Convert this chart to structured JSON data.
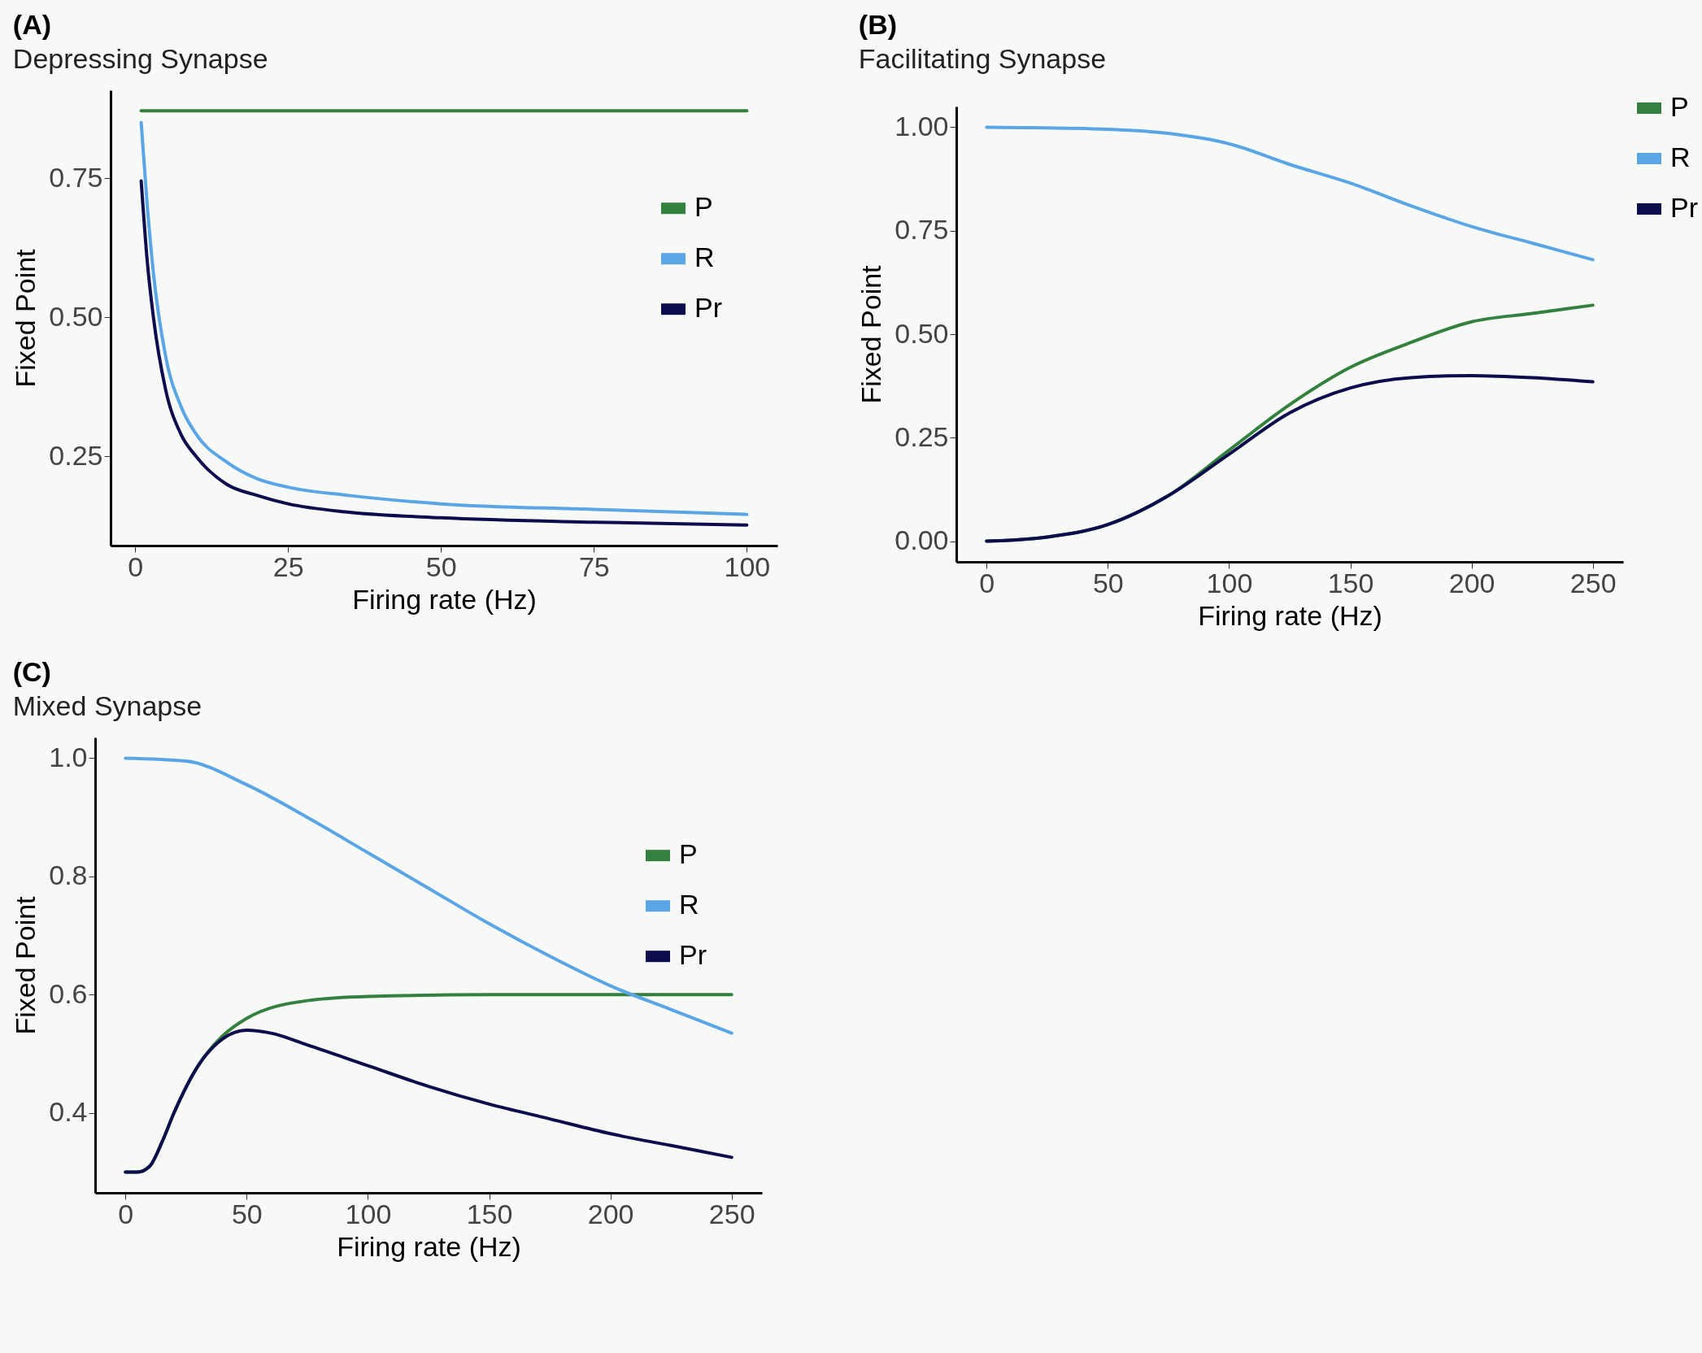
{
  "chart_data": [
    {
      "type": "line",
      "title": "(A)",
      "subtitle": "Depressing Synapse",
      "xlabel": "Firing rate (Hz)",
      "ylabel": "Fixed Point",
      "xlim": [
        -4,
        105
      ],
      "ylim": [
        0.09,
        0.908
      ],
      "xticks": [
        0,
        25,
        50,
        75,
        100
      ],
      "yticks": [
        0.25,
        {
          "value": 0.5,
          "label": "0.50"
        },
        0.75
      ],
      "grid": false,
      "legend": "right",
      "line_style": "solid",
      "series": [
        {
          "name": "P",
          "color": "#33803f",
          "x": [
            1,
            100
          ],
          "values": [
            0.871,
            0.871
          ]
        },
        {
          "name": "R",
          "color": "#5aa5e6",
          "x": [
            1,
            2,
            3,
            5,
            7.5,
            10,
            15,
            20,
            25,
            35,
            50,
            75,
            100
          ],
          "values": [
            0.85,
            0.7,
            0.58,
            0.43,
            0.34,
            0.29,
            0.24,
            0.21,
            0.195,
            0.18,
            0.165,
            0.155,
            0.146
          ]
        },
        {
          "name": "Pr",
          "color": "#0d0d4d",
          "x": [
            1,
            2,
            3,
            5,
            7.5,
            10,
            15,
            20,
            25,
            35,
            50,
            75,
            100
          ],
          "values": [
            0.745,
            0.6,
            0.5,
            0.37,
            0.29,
            0.25,
            0.2,
            0.18,
            0.165,
            0.15,
            0.14,
            0.132,
            0.127
          ]
        }
      ]
    },
    {
      "type": "line",
      "title": "(B)",
      "subtitle": "Facilitating Synapse",
      "xlabel": "Firing rate (Hz)",
      "ylabel": "Fixed Point",
      "xlim": [
        -12.5,
        262.5
      ],
      "ylim": [
        -0.05,
        1.05
      ],
      "xticks": [
        0,
        50,
        100,
        150,
        200,
        250
      ],
      "yticks": [
        {
          "value": 0,
          "label": "0.00"
        },
        0.25,
        {
          "value": 0.5,
          "label": "0.50"
        },
        0.75,
        {
          "value": 1,
          "label": "1.00"
        }
      ],
      "grid": false,
      "legend": "top right",
      "line_style": "solid",
      "series": [
        {
          "name": "P",
          "color": "#33803f",
          "x": [
            0,
            25,
            50,
            75,
            100,
            125,
            150,
            175,
            200,
            225,
            250
          ],
          "values": [
            0,
            0.01,
            0.04,
            0.11,
            0.22,
            0.33,
            0.42,
            0.48,
            0.53,
            0.55,
            0.57
          ]
        },
        {
          "name": "R",
          "color": "#5aa5e6",
          "x": [
            0,
            50,
            75,
            100,
            125,
            150,
            175,
            200,
            225,
            250
          ],
          "values": [
            1,
            0.995,
            0.985,
            0.96,
            0.91,
            0.865,
            0.81,
            0.76,
            0.72,
            0.68
          ]
        },
        {
          "name": "Pr",
          "color": "#0d0d4d",
          "x": [
            0,
            25,
            50,
            75,
            100,
            125,
            150,
            175,
            200,
            225,
            250
          ],
          "values": [
            0,
            0.01,
            0.04,
            0.11,
            0.21,
            0.31,
            0.37,
            0.395,
            0.4,
            0.395,
            0.385
          ]
        }
      ]
    },
    {
      "type": "line",
      "title": "(C)",
      "subtitle": "Mixed Synapse",
      "xlabel": "Firing rate (Hz)",
      "ylabel": "Fixed Point",
      "xlim": [
        -12.5,
        262.5
      ],
      "ylim": [
        0.265,
        1.035
      ],
      "xticks": [
        0,
        50,
        100,
        150,
        200,
        250
      ],
      "yticks": [
        0.4,
        0.6,
        0.8,
        {
          "value": 1,
          "label": "1.0"
        }
      ],
      "grid": false,
      "legend": "right",
      "line_style": "solid",
      "series": [
        {
          "name": "P",
          "color": "#33803f",
          "x": [
            0,
            5,
            10,
            15,
            20,
            30,
            40,
            50,
            75,
            100,
            150,
            200,
            250
          ],
          "values": [
            0.3,
            0.3,
            0.31,
            0.35,
            0.4,
            0.48,
            0.53,
            0.56,
            0.59,
            0.597,
            0.6,
            0.6,
            0.6
          ]
        },
        {
          "name": "R",
          "color": "#5aa5e6",
          "x": [
            0,
            25,
            50,
            75,
            100,
            125,
            150,
            175,
            200,
            225,
            250
          ],
          "values": [
            1,
            0.995,
            0.955,
            0.9,
            0.84,
            0.78,
            0.72,
            0.665,
            0.615,
            0.575,
            0.535
          ]
        },
        {
          "name": "Pr",
          "color": "#0d0d4d",
          "x": [
            0,
            5,
            10,
            15,
            20,
            30,
            40,
            50,
            60,
            75,
            100,
            125,
            150,
            175,
            200,
            225,
            250
          ],
          "values": [
            0.3,
            0.3,
            0.31,
            0.35,
            0.4,
            0.48,
            0.525,
            0.54,
            0.535,
            0.515,
            0.48,
            0.445,
            0.415,
            0.39,
            0.365,
            0.345,
            0.325
          ]
        }
      ]
    }
  ]
}
